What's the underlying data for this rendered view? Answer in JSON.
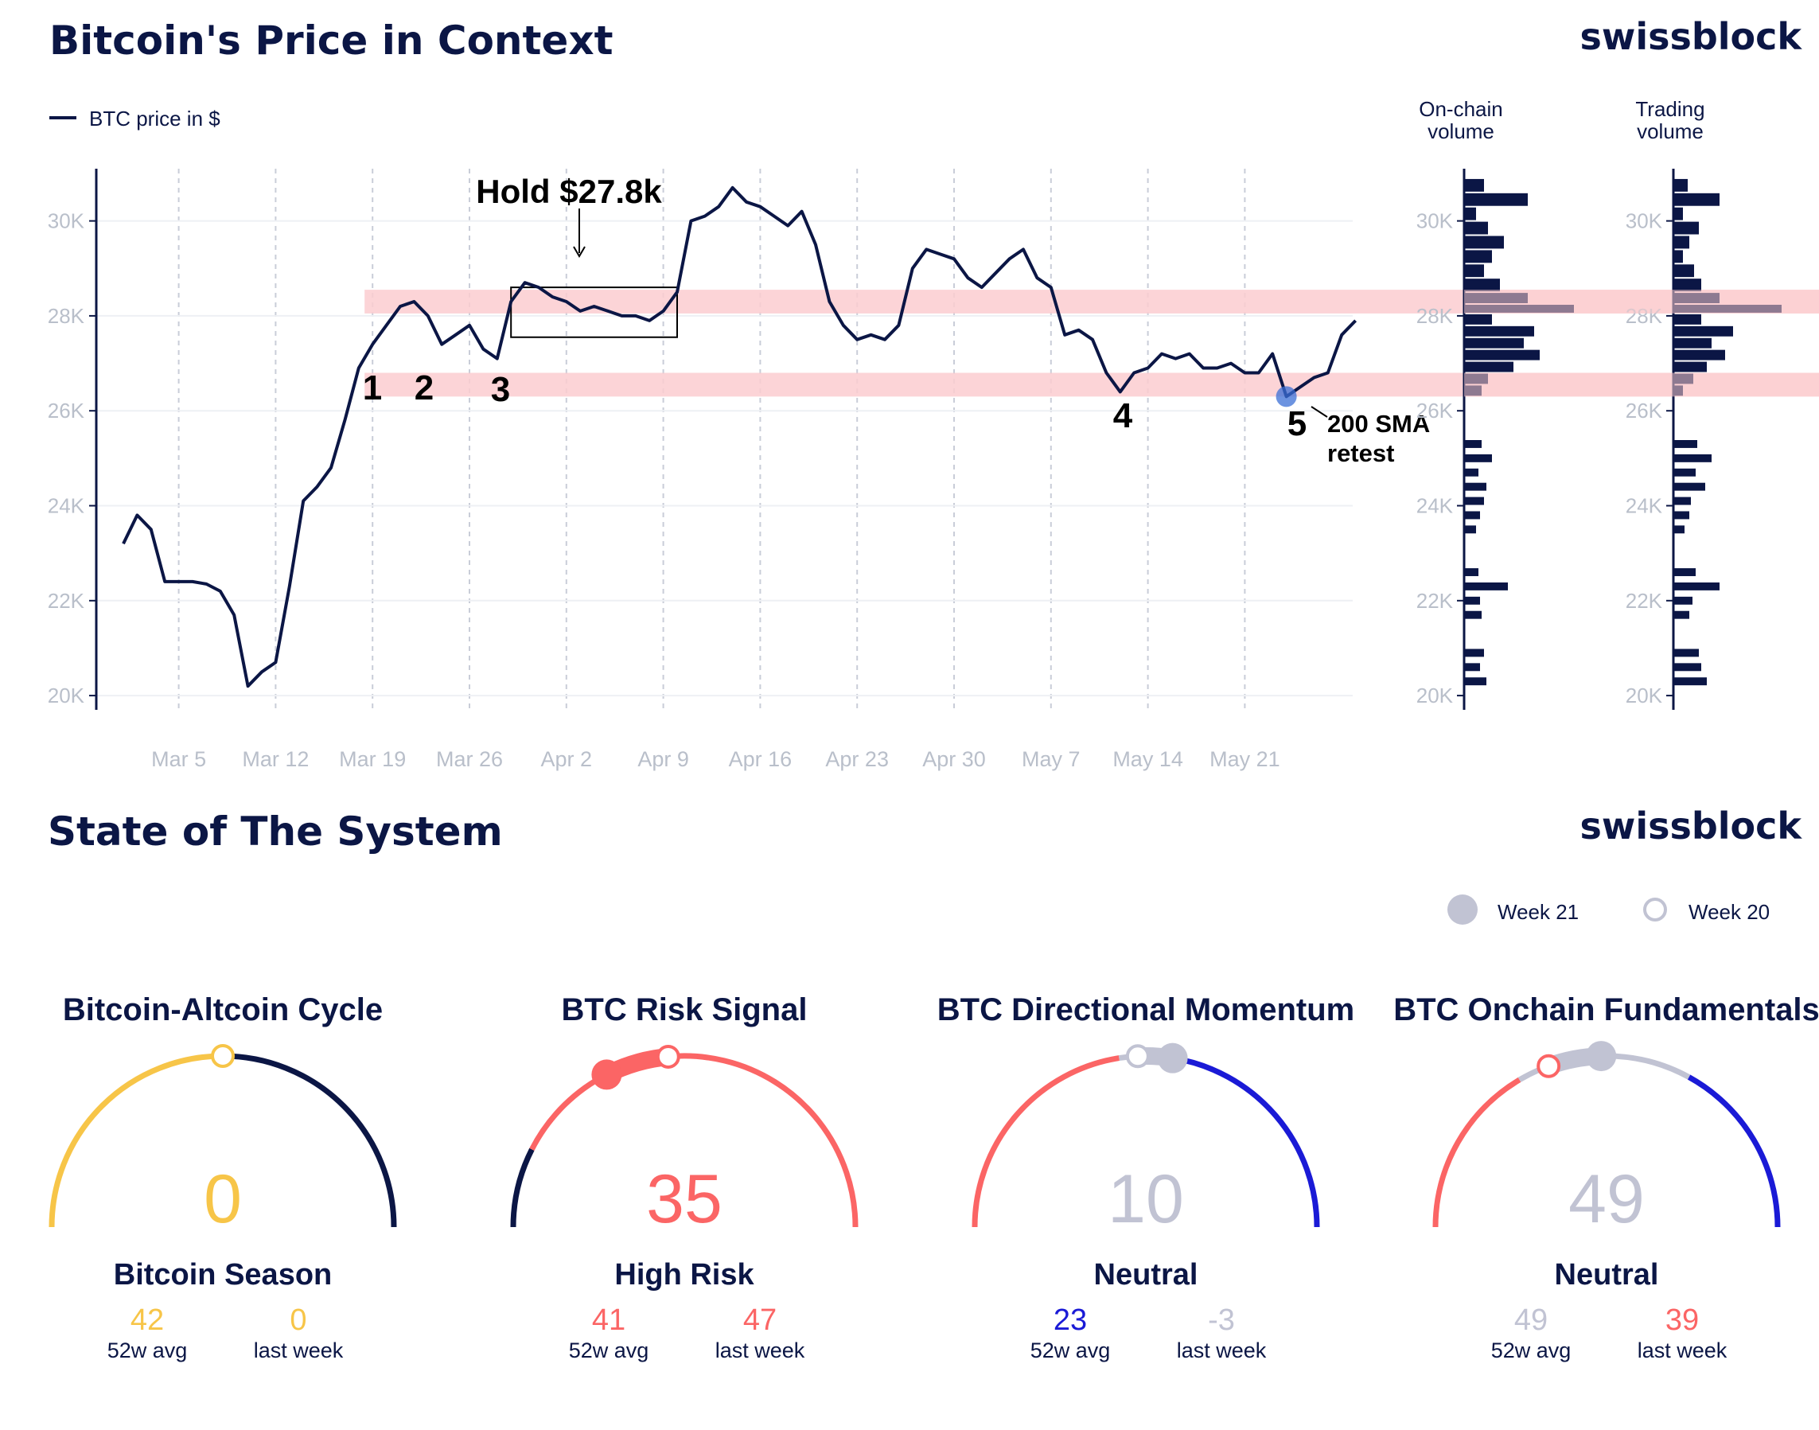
{
  "brand": "swissblock",
  "section1": {
    "title": "Bitcoin's Price in Context",
    "legend": "BTC price in $",
    "side_panels": [
      {
        "title_line1": "On-chain",
        "title_line2": "volume"
      },
      {
        "title_line1": "Trading",
        "title_line2": "volume"
      }
    ],
    "annotations": {
      "hold_label": "Hold $27.8k",
      "markers": [
        "1",
        "2",
        "3",
        "4",
        "5"
      ],
      "sma_line1": "200 SMA",
      "sma_line2": "retest"
    }
  },
  "chart_data": [
    {
      "type": "line",
      "title": "Bitcoin's Price in Context",
      "series": [
        {
          "name": "BTC price in $",
          "points": [
            [
              "Mar 1",
              23200
            ],
            [
              "Mar 2",
              23800
            ],
            [
              "Mar 3",
              23500
            ],
            [
              "Mar 4",
              22400
            ],
            [
              "Mar 5",
              22400
            ],
            [
              "Mar 6",
              22400
            ],
            [
              "Mar 7",
              22350
            ],
            [
              "Mar 8",
              22200
            ],
            [
              "Mar 9",
              21700
            ],
            [
              "Mar 10",
              20200
            ],
            [
              "Mar 11",
              20500
            ],
            [
              "Mar 12",
              20700
            ],
            [
              "Mar 13",
              22300
            ],
            [
              "Mar 14",
              24100
            ],
            [
              "Mar 15",
              24400
            ],
            [
              "Mar 16",
              24800
            ],
            [
              "Mar 17",
              25800
            ],
            [
              "Mar 18",
              26900
            ],
            [
              "Mar 19",
              27400
            ],
            [
              "Mar 20",
              27800
            ],
            [
              "Mar 21",
              28200
            ],
            [
              "Mar 22",
              28300
            ],
            [
              "Mar 23",
              28000
            ],
            [
              "Mar 24",
              27400
            ],
            [
              "Mar 25",
              27600
            ],
            [
              "Mar 26",
              27800
            ],
            [
              "Mar 27",
              27300
            ],
            [
              "Mar 28",
              27100
            ],
            [
              "Mar 29",
              28300
            ],
            [
              "Mar 30",
              28700
            ],
            [
              "Mar 31",
              28600
            ],
            [
              "Apr 1",
              28400
            ],
            [
              "Apr 2",
              28300
            ],
            [
              "Apr 3",
              28100
            ],
            [
              "Apr 4",
              28200
            ],
            [
              "Apr 5",
              28100
            ],
            [
              "Apr 6",
              28000
            ],
            [
              "Apr 7",
              28000
            ],
            [
              "Apr 8",
              27900
            ],
            [
              "Apr 9",
              28100
            ],
            [
              "Apr 10",
              28500
            ],
            [
              "Apr 11",
              30000
            ],
            [
              "Apr 12",
              30100
            ],
            [
              "Apr 13",
              30300
            ],
            [
              "Apr 14",
              30700
            ],
            [
              "Apr 15",
              30400
            ],
            [
              "Apr 16",
              30300
            ],
            [
              "Apr 17",
              30100
            ],
            [
              "Apr 18",
              29900
            ],
            [
              "Apr 19",
              30200
            ],
            [
              "Apr 20",
              29500
            ],
            [
              "Apr 21",
              28300
            ],
            [
              "Apr 22",
              27800
            ],
            [
              "Apr 23",
              27500
            ],
            [
              "Apr 24",
              27600
            ],
            [
              "Apr 25",
              27500
            ],
            [
              "Apr 26",
              27800
            ],
            [
              "Apr 27",
              29000
            ],
            [
              "Apr 28",
              29400
            ],
            [
              "Apr 29",
              29300
            ],
            [
              "Apr 30",
              29200
            ],
            [
              "May 1",
              28800
            ],
            [
              "May 2",
              28600
            ],
            [
              "May 3",
              28900
            ],
            [
              "May 4",
              29200
            ],
            [
              "May 5",
              29400
            ],
            [
              "May 6",
              28800
            ],
            [
              "May 7",
              28600
            ],
            [
              "May 8",
              27600
            ],
            [
              "May 9",
              27700
            ],
            [
              "May 10",
              27500
            ],
            [
              "May 11",
              26800
            ],
            [
              "May 12",
              26400
            ],
            [
              "May 13",
              26800
            ],
            [
              "May 14",
              26900
            ],
            [
              "May 15",
              27200
            ],
            [
              "May 16",
              27100
            ],
            [
              "May 17",
              27200
            ],
            [
              "May 18",
              26900
            ],
            [
              "May 19",
              26900
            ],
            [
              "May 20",
              27000
            ],
            [
              "May 21",
              26800
            ],
            [
              "May 22",
              26800
            ],
            [
              "May 23",
              27200
            ],
            [
              "May 24",
              26300
            ],
            [
              "May 25",
              26500
            ],
            [
              "May 26",
              26700
            ],
            [
              "May 27",
              26800
            ],
            [
              "May 28",
              27600
            ],
            [
              "May 29",
              27900
            ]
          ]
        }
      ],
      "x_ticks": [
        "Mar 5",
        "Mar 12",
        "Mar 19",
        "Mar 26",
        "Apr 2",
        "Apr 9",
        "Apr 16",
        "Apr 23",
        "Apr 30",
        "May 7",
        "May 14",
        "May 21"
      ],
      "y_ticks": [
        "20K",
        "22K",
        "24K",
        "26K",
        "28K",
        "30K"
      ],
      "ylim": [
        19700,
        31100
      ],
      "bands": [
        [
          28050,
          28550
        ],
        [
          26300,
          26800
        ]
      ],
      "hold_box": {
        "x": [
          "Mar 29",
          "Apr 10"
        ],
        "y": [
          27550,
          28600
        ]
      },
      "highlight_point": [
        "May 24",
        26300
      ],
      "markers": [
        {
          "label": "1",
          "x": "Mar 19"
        },
        {
          "label": "2",
          "x": "Mar 23"
        },
        {
          "label": "3",
          "x": "Mar 28"
        },
        {
          "label": "4",
          "x": "May 12"
        },
        {
          "label": "5",
          "x": "May 24"
        }
      ],
      "grid": "vertical-dashed",
      "legend": "top-left",
      "colors": {
        "line": "#0b1645",
        "band": "#fbcdd0",
        "grid": "#c9cdd8"
      }
    },
    {
      "type": "bar",
      "orientation": "horizontal",
      "title": "On-chain volume",
      "y_ticks": [
        "20K",
        "22K",
        "24K",
        "26K",
        "28K",
        "30K"
      ],
      "bins": [
        [
          30600,
          30900,
          0.25
        ],
        [
          30300,
          30600,
          0.8
        ],
        [
          30000,
          30300,
          0.15
        ],
        [
          29700,
          30000,
          0.3
        ],
        [
          29400,
          29700,
          0.5
        ],
        [
          29100,
          29400,
          0.35
        ],
        [
          28800,
          29100,
          0.25
        ],
        [
          28500,
          28800,
          0.45
        ],
        [
          28250,
          28500,
          0.8
        ],
        [
          28050,
          28250,
          1.38
        ],
        [
          27800,
          28050,
          0.35
        ],
        [
          27550,
          27800,
          0.88
        ],
        [
          27300,
          27550,
          0.75
        ],
        [
          27050,
          27300,
          0.95
        ],
        [
          26800,
          27050,
          0.62
        ],
        [
          26550,
          26800,
          0.3
        ],
        [
          26300,
          26550,
          0.22
        ],
        [
          25200,
          25400,
          0.22
        ],
        [
          24900,
          25100,
          0.35
        ],
        [
          24600,
          24800,
          0.18
        ],
        [
          24300,
          24500,
          0.28
        ],
        [
          24000,
          24200,
          0.25
        ],
        [
          23700,
          23900,
          0.2
        ],
        [
          23400,
          23600,
          0.15
        ],
        [
          22500,
          22700,
          0.18
        ],
        [
          22200,
          22400,
          0.55
        ],
        [
          21900,
          22100,
          0.2
        ],
        [
          21600,
          21800,
          0.22
        ],
        [
          20800,
          21000,
          0.25
        ],
        [
          20500,
          20700,
          0.2
        ],
        [
          20200,
          20400,
          0.28
        ]
      ]
    },
    {
      "type": "bar",
      "orientation": "horizontal",
      "title": "Trading volume",
      "y_ticks": [
        "20K",
        "22K",
        "24K",
        "26K",
        "28K",
        "30K"
      ],
      "bins": [
        [
          30600,
          30900,
          0.18
        ],
        [
          30300,
          30600,
          0.58
        ],
        [
          30000,
          30300,
          0.12
        ],
        [
          29700,
          30000,
          0.32
        ],
        [
          29400,
          29700,
          0.2
        ],
        [
          29100,
          29400,
          0.12
        ],
        [
          28800,
          29100,
          0.26
        ],
        [
          28500,
          28800,
          0.35
        ],
        [
          28250,
          28500,
          0.58
        ],
        [
          28050,
          28250,
          1.36
        ],
        [
          27800,
          28050,
          0.35
        ],
        [
          27550,
          27800,
          0.75
        ],
        [
          27300,
          27550,
          0.48
        ],
        [
          27050,
          27300,
          0.65
        ],
        [
          26800,
          27050,
          0.42
        ],
        [
          26550,
          26800,
          0.25
        ],
        [
          26300,
          26550,
          0.12
        ],
        [
          25200,
          25400,
          0.3
        ],
        [
          24900,
          25100,
          0.48
        ],
        [
          24600,
          24800,
          0.28
        ],
        [
          24300,
          24500,
          0.4
        ],
        [
          24000,
          24200,
          0.22
        ],
        [
          23700,
          23900,
          0.2
        ],
        [
          23400,
          23600,
          0.14
        ],
        [
          22500,
          22700,
          0.28
        ],
        [
          22200,
          22400,
          0.58
        ],
        [
          21900,
          22100,
          0.24
        ],
        [
          21600,
          21800,
          0.2
        ],
        [
          20800,
          21000,
          0.32
        ],
        [
          20500,
          20700,
          0.35
        ],
        [
          20200,
          20400,
          0.42
        ]
      ]
    },
    {
      "type": "gauge",
      "title": "Bitcoin-Altcoin Cycle",
      "value": 0,
      "label": "Bitcoin Season",
      "avg_52w": 42,
      "last_week": 0,
      "range": [
        -50,
        50
      ],
      "week21": 0,
      "week20": 0
    },
    {
      "type": "gauge",
      "title": "BTC Risk Signal",
      "value": 35,
      "label": "High Risk",
      "avg_52w": 41,
      "last_week": 47,
      "range": [
        0,
        100
      ],
      "week21": 35,
      "week20": 47
    },
    {
      "type": "gauge",
      "title": "BTC Directional Momentum",
      "value": 10,
      "label": "Neutral",
      "avg_52w": 23,
      "last_week": -3,
      "range": [
        -100,
        100
      ],
      "week21": 10,
      "week20": -3
    },
    {
      "type": "gauge",
      "title": "BTC Onchain Fundamentals",
      "value": 49,
      "label": "Neutral",
      "avg_52w": 49,
      "last_week": 39,
      "range": [
        0,
        100
      ],
      "week21": 49,
      "week20": 39
    }
  ],
  "section2": {
    "title": "State of The System",
    "legend_week21": "Week 21",
    "legend_week20": "Week 20",
    "avg_label": "52w avg",
    "last_week_label": "last week"
  },
  "colors": {
    "navy": "#0b1645",
    "yellow": "#f7c548",
    "red": "#fb6565",
    "blue": "#1a1ad6",
    "grey": "#c1c3d3"
  }
}
